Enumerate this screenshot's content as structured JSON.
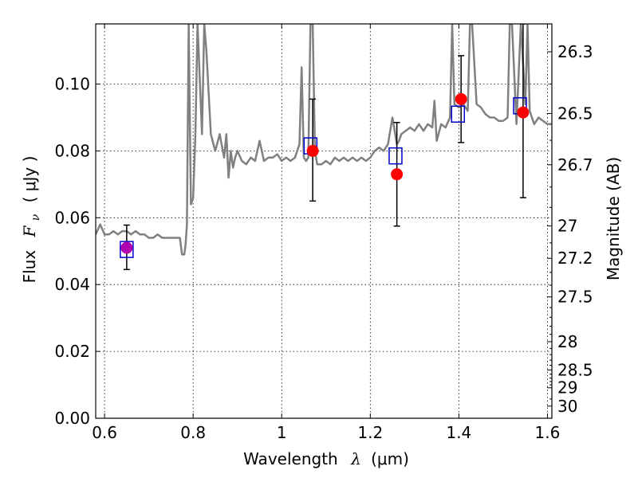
{
  "chart_data": {
    "type": "scatter",
    "xlabel": {
      "prefix": "Wavelength",
      "symbol": "λ",
      "unit": "(μm)"
    },
    "ylabel": {
      "prefix": "Flux",
      "symbol": "F",
      "subscript": "ν",
      "unit": "( μJy )"
    },
    "y2label": "Magnitude (AB)",
    "xlim": [
      0.58,
      1.61
    ],
    "ylim": [
      0.0,
      0.118
    ],
    "xticks": [
      0.6,
      0.8,
      1.0,
      1.2,
      1.4,
      1.6
    ],
    "xtick_labels": [
      "0.6",
      "0.8",
      "1",
      "1.2",
      "1.4",
      "1.6"
    ],
    "yticks": [
      0.0,
      0.02,
      0.04,
      0.06,
      0.08,
      0.1
    ],
    "ytick_labels": [
      "0.00",
      "0.02",
      "0.04",
      "0.06",
      "0.08",
      "0.10"
    ],
    "y2ticks": [
      26.3,
      26.5,
      26.7,
      27,
      27.2,
      27.5,
      28,
      28.5,
      29,
      30
    ],
    "y2tick_labels": [
      "26.3",
      "26.5",
      "26.7",
      "27",
      "27.2",
      "27.5",
      "28",
      "28.5",
      "29",
      "30"
    ],
    "y2_minor_ticks": [
      26.4,
      26.6,
      26.8,
      26.9,
      27.1,
      27.3,
      27.4,
      27.6,
      27.7,
      27.8,
      27.9,
      28.1,
      28.2,
      28.3,
      28.4,
      28.6,
      28.7,
      28.8,
      28.9,
      29.5
    ],
    "grid": true,
    "colors": {
      "spectrum": "#808080",
      "observed": "#ff0000",
      "model": "#0000cc",
      "first_point": "#b000b0",
      "errorbar": "#000000"
    },
    "series": [
      {
        "kind": "line",
        "x": [
          0.58,
          0.59,
          0.6,
          0.61,
          0.62,
          0.63,
          0.64,
          0.65,
          0.66,
          0.67,
          0.68,
          0.69,
          0.7,
          0.71,
          0.72,
          0.73,
          0.74,
          0.75,
          0.76,
          0.77,
          0.775,
          0.78,
          0.783,
          0.786,
          0.79,
          0.795,
          0.8,
          0.805,
          0.81,
          0.82,
          0.825,
          0.83,
          0.84,
          0.85,
          0.86,
          0.87,
          0.875,
          0.88,
          0.885,
          0.89,
          0.895,
          0.9,
          0.91,
          0.92,
          0.93,
          0.94,
          0.95,
          0.96,
          0.97,
          0.98,
          0.99,
          1.0,
          1.01,
          1.02,
          1.03,
          1.04,
          1.045,
          1.05,
          1.055,
          1.06,
          1.065,
          1.07,
          1.075,
          1.08,
          1.09,
          1.1,
          1.11,
          1.12,
          1.13,
          1.14,
          1.15,
          1.16,
          1.17,
          1.18,
          1.19,
          1.2,
          1.21,
          1.22,
          1.23,
          1.24,
          1.25,
          1.255,
          1.26,
          1.265,
          1.27,
          1.28,
          1.29,
          1.3,
          1.31,
          1.32,
          1.33,
          1.34,
          1.345,
          1.35,
          1.36,
          1.37,
          1.38,
          1.385,
          1.39,
          1.4,
          1.41,
          1.42,
          1.425,
          1.43,
          1.44,
          1.45,
          1.46,
          1.47,
          1.48,
          1.49,
          1.5,
          1.51,
          1.515,
          1.52,
          1.53,
          1.54,
          1.55,
          1.555,
          1.56,
          1.57,
          1.58,
          1.59,
          1.6,
          1.61
        ],
        "y": [
          0.055,
          0.058,
          0.055,
          0.055,
          0.056,
          0.055,
          0.056,
          0.056,
          0.055,
          0.056,
          0.055,
          0.055,
          0.054,
          0.054,
          0.055,
          0.054,
          0.054,
          0.054,
          0.054,
          0.054,
          0.049,
          0.049,
          0.052,
          0.058,
          0.118,
          0.064,
          0.066,
          0.085,
          0.118,
          0.085,
          0.118,
          0.11,
          0.085,
          0.08,
          0.085,
          0.078,
          0.085,
          0.072,
          0.08,
          0.075,
          0.078,
          0.08,
          0.077,
          0.076,
          0.078,
          0.077,
          0.083,
          0.077,
          0.078,
          0.078,
          0.079,
          0.077,
          0.078,
          0.077,
          0.078,
          0.082,
          0.105,
          0.078,
          0.077,
          0.078,
          0.118,
          0.118,
          0.08,
          0.076,
          0.076,
          0.077,
          0.076,
          0.078,
          0.077,
          0.078,
          0.077,
          0.078,
          0.077,
          0.078,
          0.077,
          0.078,
          0.08,
          0.081,
          0.08,
          0.082,
          0.09,
          0.086,
          0.082,
          0.083,
          0.085,
          0.086,
          0.087,
          0.086,
          0.088,
          0.086,
          0.088,
          0.087,
          0.095,
          0.083,
          0.088,
          0.087,
          0.09,
          0.118,
          0.094,
          0.093,
          0.094,
          0.092,
          0.118,
          0.118,
          0.094,
          0.093,
          0.091,
          0.09,
          0.09,
          0.089,
          0.089,
          0.09,
          0.118,
          0.118,
          0.088,
          0.118,
          0.094,
          0.118,
          0.092,
          0.088,
          0.09,
          0.089,
          0.088,
          0.088
        ]
      },
      {
        "kind": "errorbar",
        "x": [
          0.65,
          1.07,
          1.26,
          1.405,
          1.545
        ],
        "y": [
          0.051,
          0.08,
          0.073,
          0.0955,
          0.0915
        ],
        "yerr_low": [
          0.0445,
          0.065,
          0.0575,
          0.0825,
          0.066
        ],
        "yerr_high": [
          0.0578,
          0.0955,
          0.0885,
          0.1085,
          0.118
        ]
      },
      {
        "kind": "square",
        "x": [
          0.65,
          1.065,
          1.257,
          1.398,
          1.538
        ],
        "y": [
          0.0505,
          0.0815,
          0.0785,
          0.091,
          0.0935
        ]
      },
      {
        "kind": "circle",
        "x": [
          0.65,
          1.07,
          1.26,
          1.405,
          1.545
        ],
        "y": [
          0.051,
          0.08,
          0.073,
          0.0955,
          0.0915
        ]
      }
    ]
  }
}
